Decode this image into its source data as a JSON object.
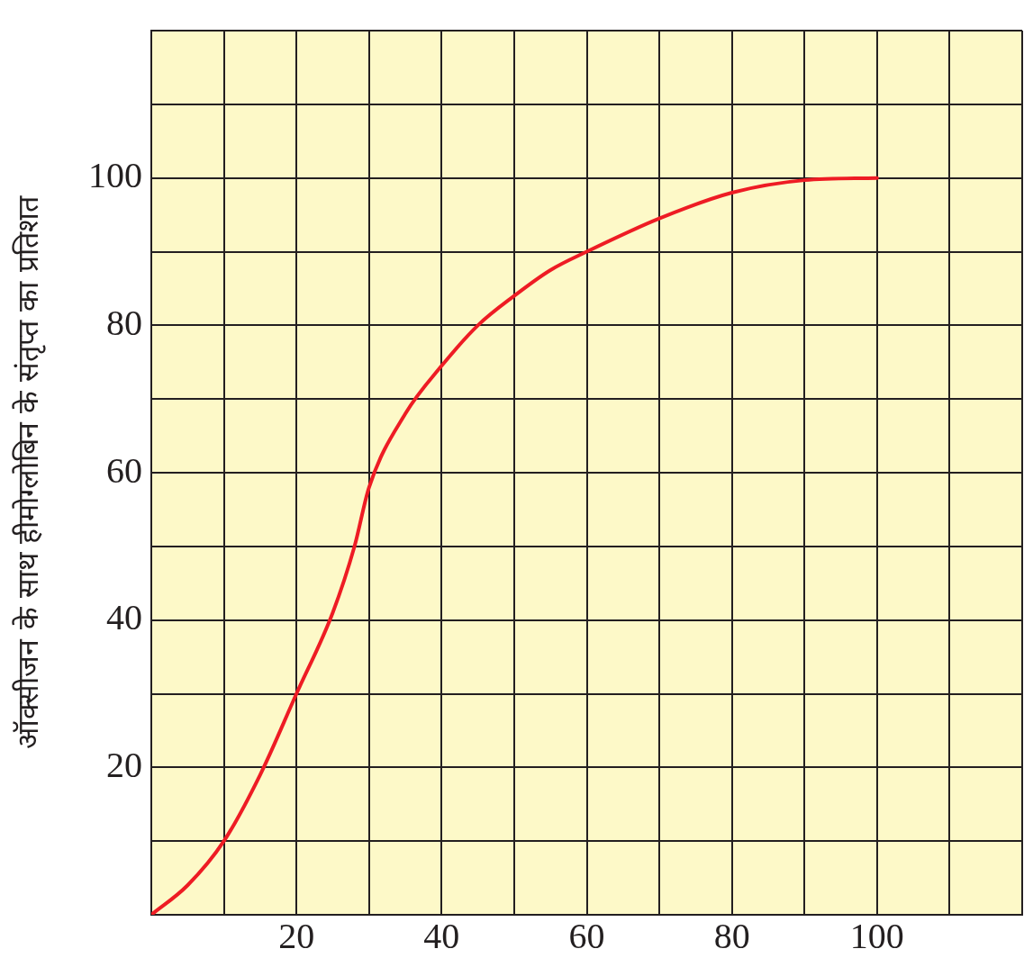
{
  "chart_data": {
    "type": "line",
    "ylabel": "ऑक्सीजन के साथ हीमोग्लोबिन के संतृप्त का प्रतिशत",
    "x": [
      0,
      5,
      10,
      15,
      20,
      25,
      28,
      30,
      35,
      40,
      45,
      50,
      55,
      60,
      70,
      80,
      90,
      100
    ],
    "series": [
      {
        "color": "#ee1c24",
        "values": [
          0,
          4,
          10,
          19,
          30,
          41,
          50,
          58,
          68,
          74.5,
          80,
          84,
          87.5,
          90,
          94.5,
          98,
          99.7,
          100
        ]
      }
    ],
    "xlim": [
      0,
      120
    ],
    "ylim": [
      0,
      120
    ],
    "xticks": [
      {
        "value": 10,
        "label": null
      },
      20,
      {
        "value": 30,
        "label": null
      },
      40,
      {
        "value": 50,
        "label": null
      },
      60,
      {
        "value": 70,
        "label": null
      },
      80,
      {
        "value": 90,
        "label": null
      },
      100,
      {
        "value": 110,
        "label": null
      },
      {
        "value": 120,
        "label": null
      }
    ],
    "yticks": [
      {
        "value": 10,
        "label": null
      },
      20,
      {
        "value": 30,
        "label": null
      },
      40,
      {
        "value": 50,
        "label": null
      },
      60,
      {
        "value": 70,
        "label": null
      },
      80,
      {
        "value": 90,
        "label": null
      },
      100,
      {
        "value": 110,
        "label": null
      },
      {
        "value": 120,
        "label": null
      }
    ],
    "grid": true,
    "legend": false,
    "marker": "none",
    "line_style": "solid"
  }
}
